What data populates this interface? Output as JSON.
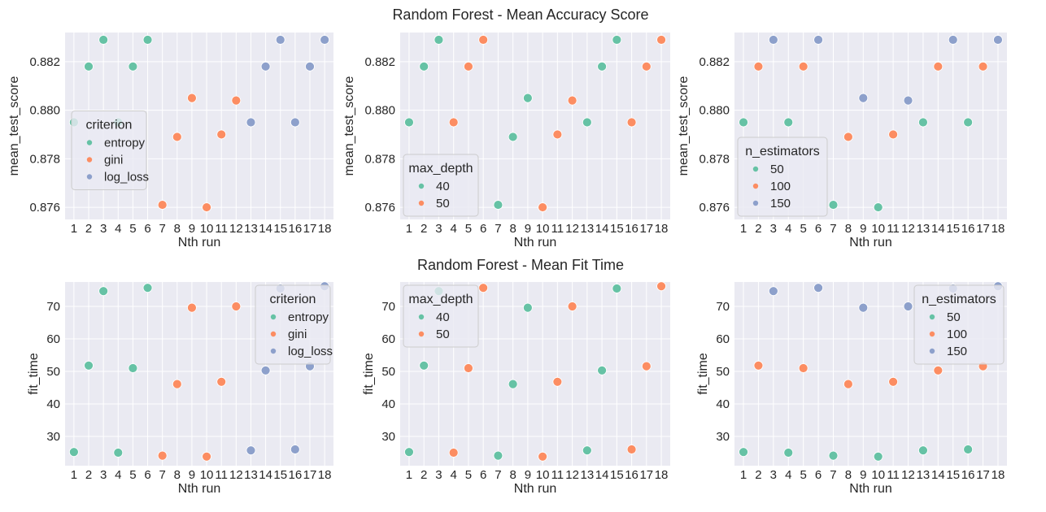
{
  "suptitles": [
    "Random Forest - Mean Accuracy Score",
    "Random Forest - Mean Fit Time"
  ],
  "chart_data": [
    {
      "type": "scatter",
      "metric": "mean_test_score",
      "hue": "criterion",
      "xlabel": "Nth run",
      "ylabel": "mean_test_score",
      "x": [
        1,
        2,
        3,
        4,
        5,
        6,
        7,
        8,
        9,
        10,
        11,
        12,
        13,
        14,
        15,
        16,
        17,
        18
      ],
      "ylim": [
        0.8755,
        0.8832
      ],
      "yticks": [
        0.876,
        0.878,
        0.88,
        0.882
      ],
      "ytick_labels": [
        "0.876",
        "0.878",
        "0.880",
        "0.882"
      ],
      "legend": {
        "title": "criterion",
        "entries": [
          "entropy",
          "gini",
          "log_loss"
        ],
        "position": "left"
      },
      "series": [
        {
          "name": "entropy",
          "points": [
            [
              1,
              0.8795
            ],
            [
              2,
              0.8818
            ],
            [
              3,
              0.8829
            ],
            [
              4,
              0.8795
            ],
            [
              5,
              0.8818
            ],
            [
              6,
              0.8829
            ]
          ]
        },
        {
          "name": "gini",
          "points": [
            [
              7,
              0.8761
            ],
            [
              8,
              0.8789
            ],
            [
              9,
              0.8805
            ],
            [
              10,
              0.876
            ],
            [
              11,
              0.879
            ],
            [
              12,
              0.8804
            ]
          ]
        },
        {
          "name": "log_loss",
          "points": [
            [
              13,
              0.8795
            ],
            [
              14,
              0.8818
            ],
            [
              15,
              0.8829
            ],
            [
              16,
              0.8795
            ],
            [
              17,
              0.8818
            ],
            [
              18,
              0.8829
            ]
          ]
        }
      ]
    },
    {
      "type": "scatter",
      "metric": "mean_test_score",
      "hue": "max_depth",
      "xlabel": "Nth run",
      "ylabel": "mean_test_score",
      "x": [
        1,
        2,
        3,
        4,
        5,
        6,
        7,
        8,
        9,
        10,
        11,
        12,
        13,
        14,
        15,
        16,
        17,
        18
      ],
      "ylim": [
        0.8755,
        0.8832
      ],
      "yticks": [
        0.876,
        0.878,
        0.88,
        0.882
      ],
      "ytick_labels": [
        "0.876",
        "0.878",
        "0.880",
        "0.882"
      ],
      "legend": {
        "title": "max_depth",
        "entries": [
          "40",
          "50"
        ],
        "position": "lower left"
      },
      "series": [
        {
          "name": "40",
          "points": [
            [
              1,
              0.8795
            ],
            [
              2,
              0.8818
            ],
            [
              3,
              0.8829
            ],
            [
              7,
              0.8761
            ],
            [
              8,
              0.8789
            ],
            [
              9,
              0.8805
            ],
            [
              13,
              0.8795
            ],
            [
              14,
              0.8818
            ],
            [
              15,
              0.8829
            ]
          ]
        },
        {
          "name": "50",
          "points": [
            [
              4,
              0.8795
            ],
            [
              5,
              0.8818
            ],
            [
              6,
              0.8829
            ],
            [
              10,
              0.876
            ],
            [
              11,
              0.879
            ],
            [
              12,
              0.8804
            ],
            [
              16,
              0.8795
            ],
            [
              17,
              0.8818
            ],
            [
              18,
              0.8829
            ]
          ]
        }
      ]
    },
    {
      "type": "scatter",
      "metric": "mean_test_score",
      "hue": "n_estimators",
      "xlabel": "Nth run",
      "ylabel": "mean_test_score",
      "x": [
        1,
        2,
        3,
        4,
        5,
        6,
        7,
        8,
        9,
        10,
        11,
        12,
        13,
        14,
        15,
        16,
        17,
        18
      ],
      "ylim": [
        0.8755,
        0.8832
      ],
      "yticks": [
        0.876,
        0.878,
        0.88,
        0.882
      ],
      "ytick_labels": [
        "0.876",
        "0.878",
        "0.880",
        "0.882"
      ],
      "legend": {
        "title": "n_estimators",
        "entries": [
          "50",
          "100",
          "150"
        ],
        "position": "lower left"
      },
      "series": [
        {
          "name": "50",
          "points": [
            [
              1,
              0.8795
            ],
            [
              4,
              0.8795
            ],
            [
              7,
              0.8761
            ],
            [
              10,
              0.876
            ],
            [
              13,
              0.8795
            ],
            [
              16,
              0.8795
            ]
          ]
        },
        {
          "name": "100",
          "points": [
            [
              2,
              0.8818
            ],
            [
              5,
              0.8818
            ],
            [
              8,
              0.8789
            ],
            [
              11,
              0.879
            ],
            [
              14,
              0.8818
            ],
            [
              17,
              0.8818
            ]
          ]
        },
        {
          "name": "150",
          "points": [
            [
              3,
              0.8829
            ],
            [
              6,
              0.8829
            ],
            [
              9,
              0.8805
            ],
            [
              12,
              0.8804
            ],
            [
              15,
              0.8829
            ],
            [
              18,
              0.8829
            ]
          ]
        }
      ]
    },
    {
      "type": "scatter",
      "metric": "fit_time",
      "hue": "criterion",
      "xlabel": "Nth run",
      "ylabel": "fit_time",
      "x": [
        1,
        2,
        3,
        4,
        5,
        6,
        7,
        8,
        9,
        10,
        11,
        12,
        13,
        14,
        15,
        16,
        17,
        18
      ],
      "ylim": [
        21,
        77.5
      ],
      "yticks": [
        30,
        40,
        50,
        60,
        70
      ],
      "ytick_labels": [
        "30",
        "40",
        "50",
        "60",
        "70"
      ],
      "legend": {
        "title": "criterion",
        "entries": [
          "entropy",
          "gini",
          "log_loss"
        ],
        "position": "upper right"
      },
      "series": [
        {
          "name": "entropy",
          "points": [
            [
              1,
              25.2
            ],
            [
              2,
              51.8
            ],
            [
              3,
              74.7
            ],
            [
              4,
              25.0
            ],
            [
              5,
              51.0
            ],
            [
              6,
              75.7
            ]
          ]
        },
        {
          "name": "gini",
          "points": [
            [
              7,
              24.1
            ],
            [
              8,
              46.1
            ],
            [
              9,
              69.6
            ],
            [
              10,
              23.8
            ],
            [
              11,
              46.8
            ],
            [
              12,
              70.0
            ]
          ]
        },
        {
          "name": "log_loss",
          "points": [
            [
              13,
              25.7
            ],
            [
              14,
              50.3
            ],
            [
              15,
              75.5
            ],
            [
              16,
              26.0
            ],
            [
              17,
              51.6
            ],
            [
              18,
              76.2
            ]
          ]
        }
      ]
    },
    {
      "type": "scatter",
      "metric": "fit_time",
      "hue": "max_depth",
      "xlabel": "Nth run",
      "ylabel": "fit_time",
      "x": [
        1,
        2,
        3,
        4,
        5,
        6,
        7,
        8,
        9,
        10,
        11,
        12,
        13,
        14,
        15,
        16,
        17,
        18
      ],
      "ylim": [
        21,
        77.5
      ],
      "yticks": [
        30,
        40,
        50,
        60,
        70
      ],
      "ytick_labels": [
        "30",
        "40",
        "50",
        "60",
        "70"
      ],
      "legend": {
        "title": "max_depth",
        "entries": [
          "40",
          "50"
        ],
        "position": "upper left"
      },
      "series": [
        {
          "name": "40",
          "points": [
            [
              1,
              25.2
            ],
            [
              2,
              51.8
            ],
            [
              3,
              74.7
            ],
            [
              7,
              24.1
            ],
            [
              8,
              46.1
            ],
            [
              9,
              69.6
            ],
            [
              13,
              25.7
            ],
            [
              14,
              50.3
            ],
            [
              15,
              75.5
            ]
          ]
        },
        {
          "name": "50",
          "points": [
            [
              4,
              25.0
            ],
            [
              5,
              51.0
            ],
            [
              6,
              75.7
            ],
            [
              10,
              23.8
            ],
            [
              11,
              46.8
            ],
            [
              12,
              70.0
            ],
            [
              16,
              26.0
            ],
            [
              17,
              51.6
            ],
            [
              18,
              76.2
            ]
          ]
        }
      ]
    },
    {
      "type": "scatter",
      "metric": "fit_time",
      "hue": "n_estimators",
      "xlabel": "Nth run",
      "ylabel": "fit_time",
      "x": [
        1,
        2,
        3,
        4,
        5,
        6,
        7,
        8,
        9,
        10,
        11,
        12,
        13,
        14,
        15,
        16,
        17,
        18
      ],
      "ylim": [
        21,
        77.5
      ],
      "yticks": [
        30,
        40,
        50,
        60,
        70
      ],
      "ytick_labels": [
        "30",
        "40",
        "50",
        "60",
        "70"
      ],
      "legend": {
        "title": "n_estimators",
        "entries": [
          "50",
          "100",
          "150"
        ],
        "position": "upper right"
      },
      "series": [
        {
          "name": "50",
          "points": [
            [
              1,
              25.2
            ],
            [
              4,
              25.0
            ],
            [
              7,
              24.1
            ],
            [
              10,
              23.8
            ],
            [
              13,
              25.7
            ],
            [
              16,
              26.0
            ]
          ]
        },
        {
          "name": "100",
          "points": [
            [
              2,
              51.8
            ],
            [
              5,
              51.0
            ],
            [
              8,
              46.1
            ],
            [
              11,
              46.8
            ],
            [
              14,
              50.3
            ],
            [
              17,
              51.6
            ]
          ]
        },
        {
          "name": "150",
          "points": [
            [
              3,
              74.7
            ],
            [
              6,
              75.7
            ],
            [
              9,
              69.6
            ],
            [
              12,
              70.0
            ],
            [
              15,
              75.5
            ],
            [
              18,
              76.2
            ]
          ]
        }
      ]
    }
  ],
  "colors": {
    "palette": [
      "#66c2a5",
      "#fc8d62",
      "#8da0cb"
    ],
    "plot_background": "#eaeaf2",
    "grid": "#ffffff",
    "text": "#262626"
  }
}
